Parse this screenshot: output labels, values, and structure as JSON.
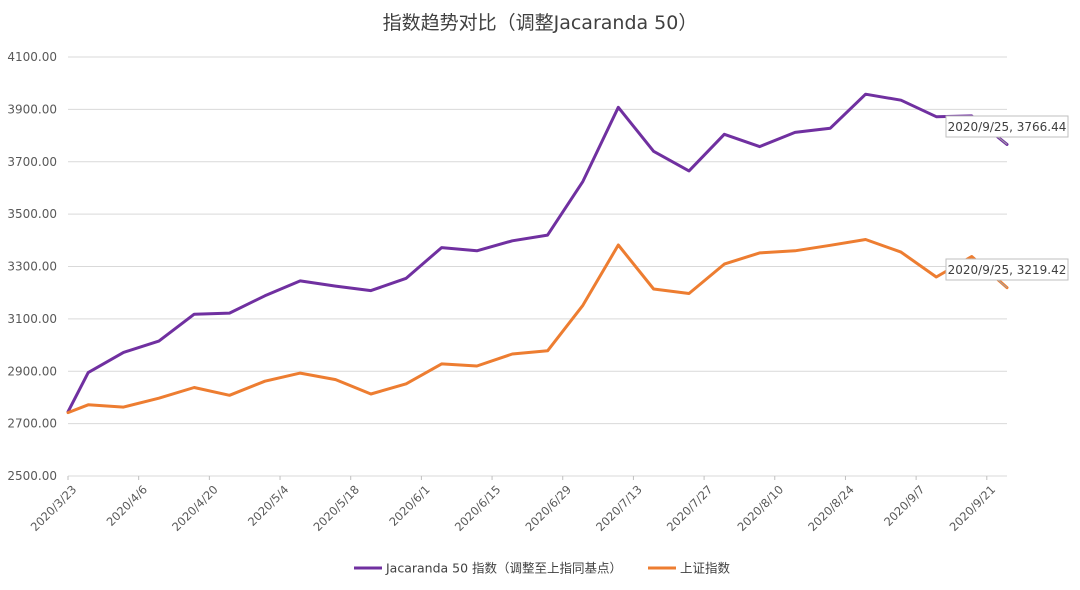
{
  "chart_data": {
    "type": "line",
    "title": "指数趋势对比（调整Jacaranda 50）",
    "xlabel": "",
    "ylabel": "",
    "ylim": [
      2500,
      4100
    ],
    "yticks": [
      "4100.00",
      "3900.00",
      "3700.00",
      "3500.00",
      "3300.00",
      "3100.00",
      "2900.00",
      "2700.00",
      "2500.00"
    ],
    "x_tick_labels": [
      "2020/3/23",
      "2020/4/6",
      "2020/4/20",
      "2020/5/4",
      "2020/5/18",
      "2020/6/1",
      "2020/6/15",
      "2020/6/29",
      "2020/7/13",
      "2020/7/27",
      "2020/8/10",
      "2020/8/24",
      "2020/9/7",
      "2020/9/21"
    ],
    "x_range": [
      "2020-03-23",
      "2020-09-25"
    ],
    "legend_position": "bottom",
    "grid": true,
    "series": [
      {
        "name": "Jacaranda 50 指数（调整至上指同基点）",
        "color": "#7030a0",
        "points": [
          [
            "2020-03-23",
            2745
          ],
          [
            "2020-03-27",
            2895
          ],
          [
            "2020-04-03",
            2972
          ],
          [
            "2020-04-10",
            3015
          ],
          [
            "2020-04-17",
            3118
          ],
          [
            "2020-04-24",
            3122
          ],
          [
            "2020-05-01",
            3188
          ],
          [
            "2020-05-08",
            3245
          ],
          [
            "2020-05-15",
            3225
          ],
          [
            "2020-05-22",
            3208
          ],
          [
            "2020-05-29",
            3255
          ],
          [
            "2020-06-05",
            3372
          ],
          [
            "2020-06-12",
            3360
          ],
          [
            "2020-06-19",
            3398
          ],
          [
            "2020-06-26",
            3420
          ],
          [
            "2020-07-03",
            3625
          ],
          [
            "2020-07-10",
            3908
          ],
          [
            "2020-07-17",
            3740
          ],
          [
            "2020-07-24",
            3665
          ],
          [
            "2020-07-31",
            3805
          ],
          [
            "2020-08-07",
            3758
          ],
          [
            "2020-08-14",
            3812
          ],
          [
            "2020-08-21",
            3828
          ],
          [
            "2020-08-28",
            3958
          ],
          [
            "2020-09-04",
            3935
          ],
          [
            "2020-09-11",
            3872
          ],
          [
            "2020-09-18",
            3875
          ],
          [
            "2020-09-25",
            3766.44
          ]
        ],
        "callout": "2020/9/25, 3766.44"
      },
      {
        "name": "上证指数",
        "color": "#ed7d31",
        "points": [
          [
            "2020-03-23",
            2742
          ],
          [
            "2020-03-27",
            2772
          ],
          [
            "2020-04-03",
            2763
          ],
          [
            "2020-04-10",
            2797
          ],
          [
            "2020-04-17",
            2838
          ],
          [
            "2020-04-24",
            2808
          ],
          [
            "2020-05-01",
            2862
          ],
          [
            "2020-05-08",
            2893
          ],
          [
            "2020-05-15",
            2868
          ],
          [
            "2020-05-22",
            2813
          ],
          [
            "2020-05-29",
            2852
          ],
          [
            "2020-06-05",
            2928
          ],
          [
            "2020-06-12",
            2920
          ],
          [
            "2020-06-19",
            2966
          ],
          [
            "2020-06-26",
            2978
          ],
          [
            "2020-07-03",
            3152
          ],
          [
            "2020-07-10",
            3382
          ],
          [
            "2020-07-17",
            3214
          ],
          [
            "2020-07-24",
            3197
          ],
          [
            "2020-07-31",
            3309
          ],
          [
            "2020-08-07",
            3352
          ],
          [
            "2020-08-14",
            3360
          ],
          [
            "2020-08-21",
            3381
          ],
          [
            "2020-08-28",
            3403
          ],
          [
            "2020-09-04",
            3355
          ],
          [
            "2020-09-11",
            3260
          ],
          [
            "2020-09-18",
            3338
          ],
          [
            "2020-09-25",
            3219.42
          ]
        ],
        "callout": "2020/9/25, 3219.42"
      }
    ]
  }
}
